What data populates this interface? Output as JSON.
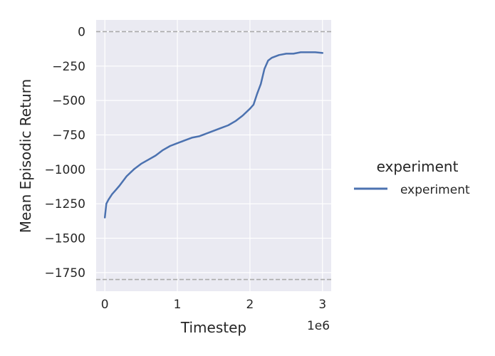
{
  "chart_data": {
    "type": "line",
    "xlabel": "Timestep",
    "ylabel": "Mean Episodic Return",
    "x_offset_label": "1e6",
    "x_scale": 1000000,
    "xlim": [
      -0.12,
      3.12
    ],
    "ylim": [
      -1885,
      85
    ],
    "x_ticks": [
      0,
      1,
      2,
      3
    ],
    "x_tick_labels": [
      "0",
      "1",
      "2",
      "3"
    ],
    "y_ticks": [
      0,
      -250,
      -500,
      -750,
      -1000,
      -1250,
      -1500,
      -1750
    ],
    "y_tick_labels": [
      "0",
      "−250",
      "−500",
      "−750",
      "−1000",
      "−1250",
      "−1500",
      "−1750"
    ],
    "grid": true,
    "background": "#eaeaf2",
    "reference_lines": [
      {
        "y": 0,
        "style": "dashed",
        "color": "#aaaaaa"
      },
      {
        "y": -1800,
        "style": "dashed",
        "color": "#aaaaaa"
      }
    ],
    "legend": {
      "title": "experiment",
      "placement": "outside-right",
      "entries": [
        {
          "label": "experiment",
          "color": "#4c72b0"
        }
      ]
    },
    "series": [
      {
        "name": "experiment",
        "color": "#4c72b0",
        "x": [
          0,
          0.02,
          0.05,
          0.1,
          0.15,
          0.2,
          0.3,
          0.4,
          0.5,
          0.6,
          0.7,
          0.8,
          0.9,
          1.0,
          1.1,
          1.2,
          1.3,
          1.4,
          1.5,
          1.6,
          1.7,
          1.8,
          1.9,
          2.0,
          2.05,
          2.1,
          2.15,
          2.2,
          2.25,
          2.3,
          2.4,
          2.5,
          2.6,
          2.7,
          2.8,
          2.9,
          3.0
        ],
        "y": [
          -1350,
          -1250,
          -1220,
          -1180,
          -1150,
          -1120,
          -1050,
          -1000,
          -960,
          -930,
          -900,
          -860,
          -830,
          -810,
          -790,
          -770,
          -760,
          -740,
          -720,
          -700,
          -680,
          -650,
          -610,
          -560,
          -530,
          -450,
          -380,
          -270,
          -210,
          -190,
          -170,
          -160,
          -160,
          -150,
          -150,
          -150,
          -155
        ]
      }
    ]
  }
}
